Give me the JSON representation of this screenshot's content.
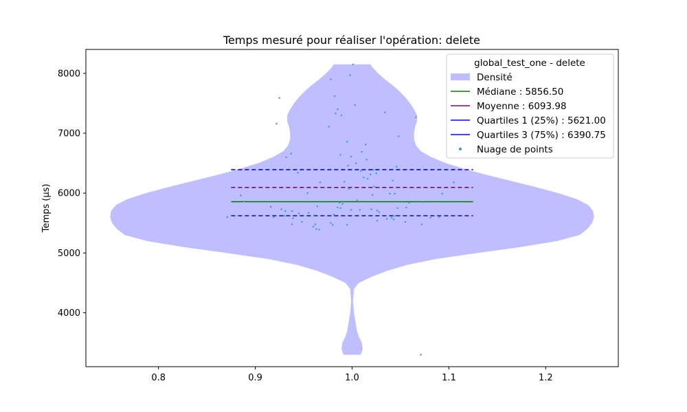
{
  "chart_data": {
    "type": "violin",
    "title": "Temps mesuré pour réaliser l'opération: delete",
    "xlabel": "",
    "ylabel": "Temps (µs)",
    "xlim": [
      0.725,
      1.275
    ],
    "ylim": [
      3100,
      8400
    ],
    "x_ticks": [
      0.8,
      0.9,
      1.0,
      1.1,
      1.2
    ],
    "x_tick_labels": [
      "0.8",
      "0.9",
      "1.0",
      "1.1",
      "1.2"
    ],
    "y_ticks": [
      4000,
      5000,
      6000,
      7000,
      8000
    ],
    "y_tick_labels": [
      "4000",
      "5000",
      "6000",
      "7000",
      "8000"
    ],
    "grid": false,
    "legend_position": "top-right",
    "legend": {
      "title": "global_test_one - delete",
      "entries": [
        {
          "label": "Densité",
          "kind": "patch"
        },
        {
          "label": "Médiane : 5856.50",
          "kind": "line"
        },
        {
          "label": "Moyenne : 6093.98",
          "kind": "line"
        },
        {
          "label": "Quartiles 1 (25%) : 5621.00",
          "kind": "line"
        },
        {
          "label": "Quartiles 3 (75%) : 6390.75",
          "kind": "line"
        },
        {
          "label": "Nuage de points",
          "kind": "dot"
        }
      ]
    },
    "colors": {
      "density": "#bfbfff",
      "median": "#008000",
      "mean": "#800080",
      "quartile1": "#0000ff",
      "quartile3": "#0000ff",
      "points": "#3a9ab5"
    },
    "violin": {
      "position": 1.0,
      "max_half_width": 0.25,
      "profile": [
        [
          3300,
          0.009
        ],
        [
          3400,
          0.011
        ],
        [
          3500,
          0.01
        ],
        [
          3600,
          0.007
        ],
        [
          3700,
          0.005
        ],
        [
          3800,
          0.004
        ],
        [
          3900,
          0.003
        ],
        [
          4000,
          0.002
        ],
        [
          4200,
          0.001
        ],
        [
          4400,
          0.002
        ],
        [
          4500,
          0.007
        ],
        [
          4600,
          0.02
        ],
        [
          4700,
          0.036
        ],
        [
          4800,
          0.057
        ],
        [
          4900,
          0.087
        ],
        [
          5000,
          0.13
        ],
        [
          5100,
          0.175
        ],
        [
          5200,
          0.212
        ],
        [
          5300,
          0.235
        ],
        [
          5400,
          0.243
        ],
        [
          5500,
          0.248
        ],
        [
          5600,
          0.25
        ],
        [
          5700,
          0.249
        ],
        [
          5800,
          0.244
        ],
        [
          5900,
          0.232
        ],
        [
          6000,
          0.213
        ],
        [
          6100,
          0.19
        ],
        [
          6200,
          0.165
        ],
        [
          6300,
          0.14
        ],
        [
          6400,
          0.117
        ],
        [
          6500,
          0.097
        ],
        [
          6600,
          0.082
        ],
        [
          6700,
          0.071
        ],
        [
          6800,
          0.066
        ],
        [
          6900,
          0.064
        ],
        [
          7000,
          0.064
        ],
        [
          7100,
          0.065
        ],
        [
          7200,
          0.067
        ],
        [
          7300,
          0.067
        ],
        [
          7400,
          0.064
        ],
        [
          7500,
          0.06
        ],
        [
          7600,
          0.055
        ],
        [
          7700,
          0.049
        ],
        [
          7800,
          0.042
        ],
        [
          7900,
          0.034
        ],
        [
          8000,
          0.027
        ],
        [
          8100,
          0.021
        ],
        [
          8150,
          0.019
        ]
      ]
    },
    "stat_lines": {
      "x_range": [
        0.875,
        1.125
      ],
      "median": 5856.5,
      "mean": 6093.98,
      "q1": 5621.0,
      "q3": 6390.75
    },
    "points": [
      {
        "x": 1.001,
        "y": 8150
      },
      {
        "x": 0.998,
        "y": 7970
      },
      {
        "x": 0.978,
        "y": 7900
      },
      {
        "x": 0.982,
        "y": 7620
      },
      {
        "x": 0.925,
        "y": 7590
      },
      {
        "x": 1.003,
        "y": 7470
      },
      {
        "x": 0.985,
        "y": 7400
      },
      {
        "x": 0.983,
        "y": 7330
      },
      {
        "x": 0.989,
        "y": 7300
      },
      {
        "x": 1.034,
        "y": 7350
      },
      {
        "x": 1.066,
        "y": 7270
      },
      {
        "x": 0.922,
        "y": 7160
      },
      {
        "x": 0.976,
        "y": 7110
      },
      {
        "x": 1.048,
        "y": 6950
      },
      {
        "x": 0.995,
        "y": 6860
      },
      {
        "x": 1.014,
        "y": 6810
      },
      {
        "x": 1.01,
        "y": 6690
      },
      {
        "x": 0.937,
        "y": 6660
      },
      {
        "x": 0.988,
        "y": 6640
      },
      {
        "x": 0.999,
        "y": 6610
      },
      {
        "x": 0.932,
        "y": 6600
      },
      {
        "x": 1.015,
        "y": 6560
      },
      {
        "x": 1.004,
        "y": 6500
      },
      {
        "x": 0.996,
        "y": 6460
      },
      {
        "x": 1.046,
        "y": 6440
      },
      {
        "x": 1.022,
        "y": 6390
      },
      {
        "x": 1.009,
        "y": 6370
      },
      {
        "x": 0.944,
        "y": 6340
      },
      {
        "x": 1.025,
        "y": 6330
      },
      {
        "x": 1.019,
        "y": 6310
      },
      {
        "x": 1.012,
        "y": 6260
      },
      {
        "x": 1.016,
        "y": 6240
      },
      {
        "x": 1.042,
        "y": 6210
      },
      {
        "x": 0.992,
        "y": 6190
      },
      {
        "x": 1.105,
        "y": 6180
      },
      {
        "x": 0.967,
        "y": 6180
      },
      {
        "x": 1.023,
        "y": 6110
      },
      {
        "x": 0.997,
        "y": 6070
      },
      {
        "x": 0.954,
        "y": 6000
      },
      {
        "x": 1.039,
        "y": 5990
      },
      {
        "x": 1.044,
        "y": 5990
      },
      {
        "x": 1.021,
        "y": 5970
      },
      {
        "x": 1.093,
        "y": 5990
      },
      {
        "x": 0.885,
        "y": 5960
      },
      {
        "x": 1.005,
        "y": 5880
      },
      {
        "x": 0.888,
        "y": 5860
      },
      {
        "x": 0.987,
        "y": 5840
      },
      {
        "x": 0.99,
        "y": 5820
      },
      {
        "x": 1.059,
        "y": 5840
      },
      {
        "x": 1.073,
        "y": 5850
      },
      {
        "x": 0.964,
        "y": 5780
      },
      {
        "x": 0.985,
        "y": 5760
      },
      {
        "x": 0.916,
        "y": 5770
      },
      {
        "x": 0.988,
        "y": 5750
      },
      {
        "x": 1.047,
        "y": 5750
      },
      {
        "x": 1.056,
        "y": 5760
      },
      {
        "x": 0.927,
        "y": 5730
      },
      {
        "x": 0.938,
        "y": 5700
      },
      {
        "x": 0.999,
        "y": 5720
      },
      {
        "x": 1.008,
        "y": 5720
      },
      {
        "x": 1.02,
        "y": 5730
      },
      {
        "x": 1.026,
        "y": 5710
      },
      {
        "x": 0.931,
        "y": 5700
      },
      {
        "x": 0.945,
        "y": 5660
      },
      {
        "x": 0.955,
        "y": 5670
      },
      {
        "x": 0.93,
        "y": 5620
      },
      {
        "x": 0.961,
        "y": 5630
      },
      {
        "x": 0.981,
        "y": 5640
      },
      {
        "x": 1.028,
        "y": 5680
      },
      {
        "x": 1.044,
        "y": 5620
      },
      {
        "x": 0.919,
        "y": 5600
      },
      {
        "x": 0.871,
        "y": 5600
      },
      {
        "x": 0.939,
        "y": 5580
      },
      {
        "x": 1.036,
        "y": 5570
      },
      {
        "x": 1.041,
        "y": 5590
      },
      {
        "x": 1.043,
        "y": 5560
      },
      {
        "x": 1.055,
        "y": 5520
      },
      {
        "x": 1.026,
        "y": 5540
      },
      {
        "x": 0.948,
        "y": 5520
      },
      {
        "x": 0.978,
        "y": 5500
      },
      {
        "x": 0.938,
        "y": 5480
      },
      {
        "x": 0.962,
        "y": 5480
      },
      {
        "x": 0.98,
        "y": 5470
      },
      {
        "x": 0.995,
        "y": 5470
      },
      {
        "x": 1.072,
        "y": 5480
      },
      {
        "x": 0.96,
        "y": 5440
      },
      {
        "x": 0.963,
        "y": 5400
      },
      {
        "x": 0.966,
        "y": 5390
      },
      {
        "x": 1.081,
        "y": 5590
      },
      {
        "x": 1.09,
        "y": 5600
      },
      {
        "x": 1.071,
        "y": 3300
      }
    ]
  }
}
